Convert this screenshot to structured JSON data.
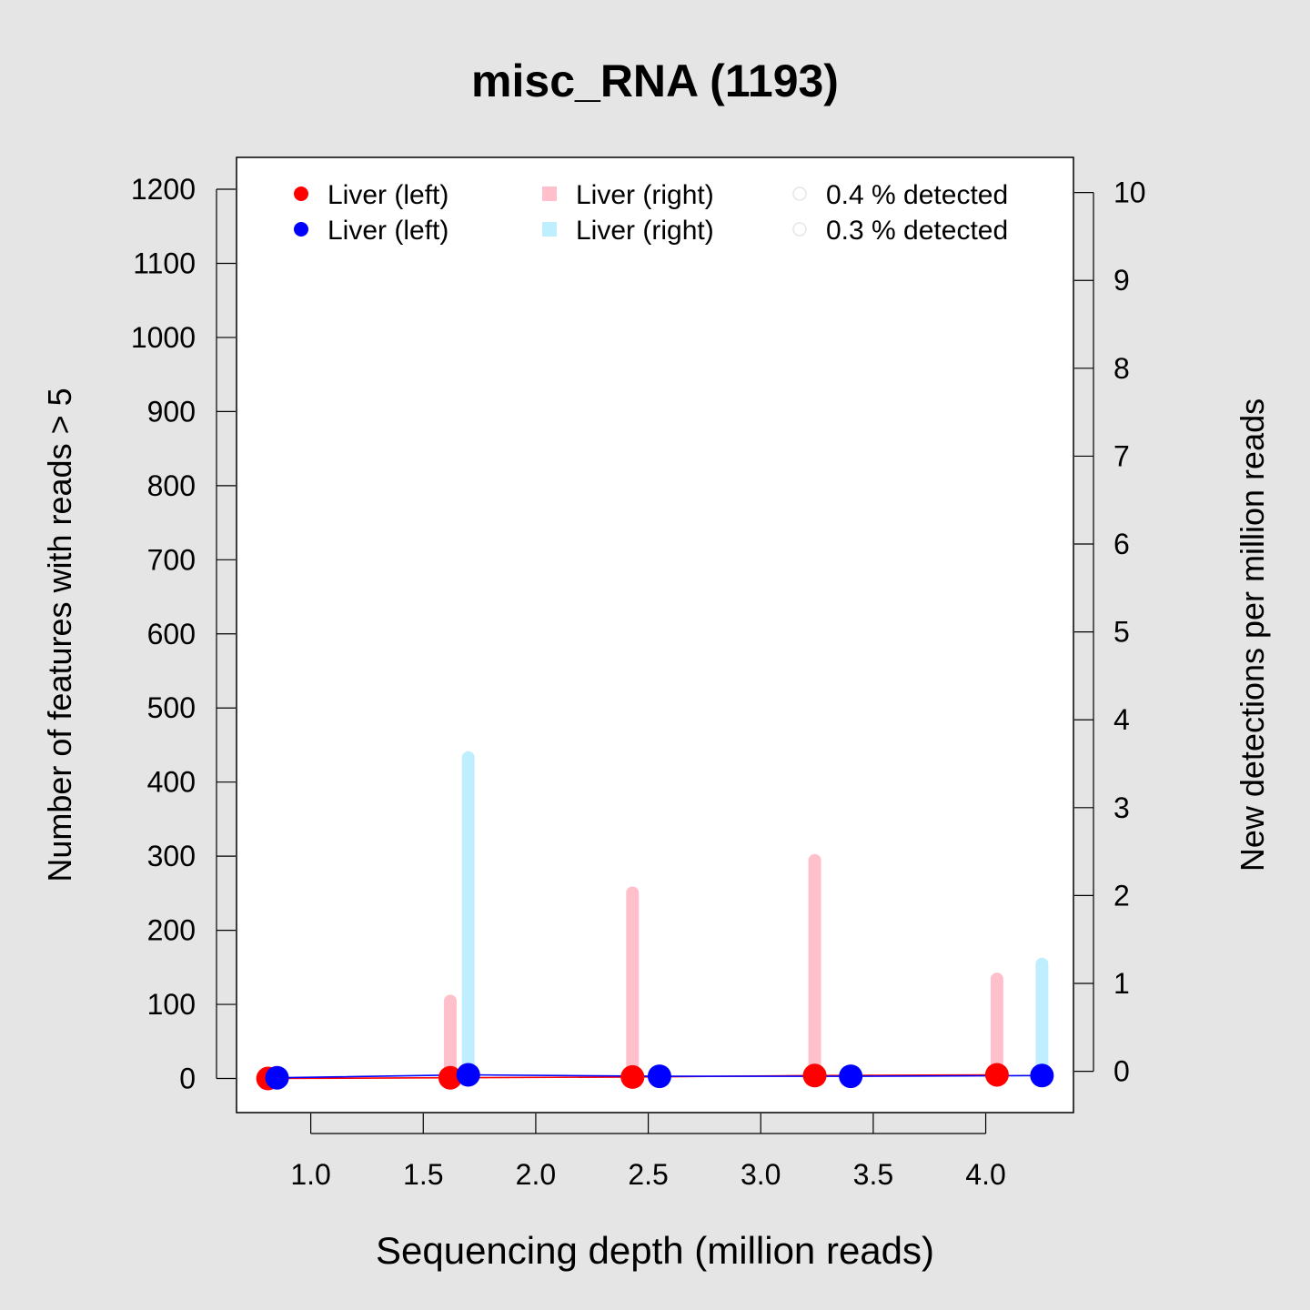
{
  "chart_data": {
    "type": "scatter",
    "title": "misc_RNA (1193)",
    "xlabel": "Sequencing depth (million reads)",
    "ylabel": "Number of features with reads > 5",
    "y2label": "New detections per million reads",
    "xlim": [
      0.67,
      4.39
    ],
    "ylim": [
      -46,
      1243
    ],
    "y2lim": [
      -0.47,
      10.4
    ],
    "xticks": [
      "1.0",
      "1.5",
      "2.0",
      "2.5",
      "3.0",
      "3.5",
      "4.0"
    ],
    "yticks": [
      "0",
      "100",
      "200",
      "300",
      "400",
      "500",
      "600",
      "700",
      "800",
      "900",
      "1000",
      "1100",
      "1200"
    ],
    "y2ticks": [
      "0",
      "1",
      "2",
      "3",
      "4",
      "5",
      "6",
      "7",
      "8",
      "9",
      "10"
    ],
    "grid": false,
    "legend_position": "top",
    "series": [
      {
        "name": "Liver (left)",
        "kind": "points-line",
        "axis": "left",
        "color": "#ff0000",
        "x": [
          0.81,
          1.62,
          2.43,
          3.24,
          4.05
        ],
        "y": [
          0,
          1,
          2,
          4,
          5
        ]
      },
      {
        "name": "Liver (left)",
        "kind": "points-line",
        "axis": "left",
        "color": "#0000ff",
        "x": [
          0.85,
          1.7,
          2.55,
          3.4,
          4.25
        ],
        "y": [
          1,
          5,
          3,
          3,
          4
        ]
      },
      {
        "name": "Liver (right)",
        "kind": "bars",
        "axis": "right",
        "color": "#ffc0cb",
        "x": [
          1.62,
          2.43,
          3.24,
          4.05
        ],
        "y": [
          0.8,
          2.03,
          2.4,
          1.05
        ]
      },
      {
        "name": "Liver (right)",
        "kind": "bars",
        "axis": "right",
        "color": "#bfefff",
        "x": [
          1.7,
          4.25
        ],
        "y": [
          3.57,
          1.22
        ]
      }
    ],
    "legend": [
      {
        "label": "Liver (left)",
        "color": "#ff0000",
        "shape": "circle"
      },
      {
        "label": "Liver (left)",
        "color": "#0000ff",
        "shape": "circle"
      },
      {
        "label": "Liver (right)",
        "color": "#ffc0cb",
        "shape": "square"
      },
      {
        "label": "Liver (right)",
        "color": "#bfefff",
        "shape": "square"
      },
      {
        "label": "0.4 % detected",
        "color": "#ffffff",
        "shape": "circle"
      },
      {
        "label": "0.3 % detected",
        "color": "#ffffff",
        "shape": "circle"
      }
    ]
  }
}
